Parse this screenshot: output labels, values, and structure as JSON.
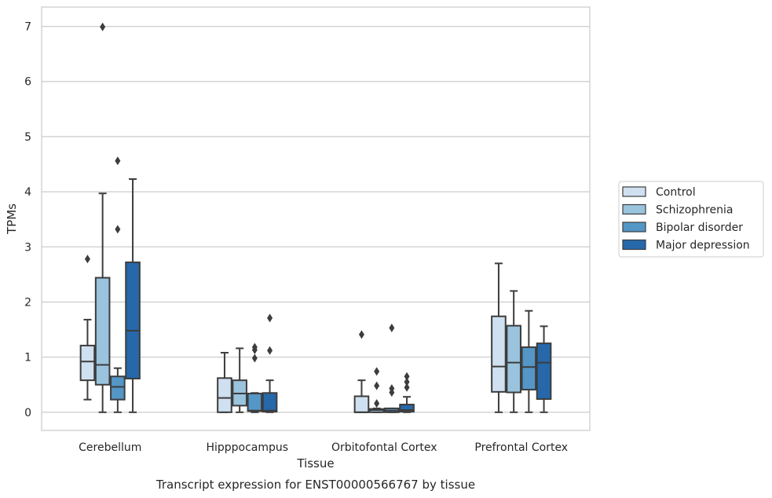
{
  "chart_data": {
    "type": "box",
    "title": "",
    "caption": "Transcript expression for ENST00000566767 by tissue",
    "xlabel": "Tissue",
    "ylabel": "TPMs",
    "ylim": [
      -0.33,
      7.35
    ],
    "yticks": [
      0,
      1,
      2,
      3,
      4,
      5,
      6,
      7
    ],
    "grid": "horizontal",
    "legend_position": "right",
    "categories": [
      "Cerebellum",
      "Hipppocampus",
      "Orbitofontal Cortex",
      "Prefrontal Cortex"
    ],
    "series": [
      {
        "name": "Control",
        "color": "#cfe0f0",
        "boxes": [
          {
            "whislo": 0.23,
            "q1": 0.58,
            "median": 0.92,
            "q3": 1.21,
            "whishi": 1.68,
            "fliers": [
              2.78
            ]
          },
          {
            "whislo": 0.0,
            "q1": 0.0,
            "median": 0.26,
            "q3": 0.62,
            "whishi": 1.08,
            "fliers": []
          },
          {
            "whislo": 0.0,
            "q1": 0.0,
            "median": 0.0,
            "q3": 0.29,
            "whishi": 0.58,
            "fliers": [
              1.41
            ]
          },
          {
            "whislo": 0.0,
            "q1": 0.37,
            "median": 0.83,
            "q3": 1.74,
            "whishi": 2.7,
            "fliers": []
          }
        ]
      },
      {
        "name": "Schizophrenia",
        "color": "#9ac3de",
        "boxes": [
          {
            "whislo": 0.0,
            "q1": 0.5,
            "median": 0.86,
            "q3": 2.44,
            "whishi": 3.97,
            "fliers": [
              6.99
            ]
          },
          {
            "whislo": 0.0,
            "q1": 0.12,
            "median": 0.34,
            "q3": 0.58,
            "whishi": 1.16,
            "fliers": []
          },
          {
            "whislo": 0.0,
            "q1": 0.0,
            "median": 0.04,
            "q3": 0.06,
            "whishi": 0.07,
            "fliers": [
              0.16,
              0.48,
              0.74
            ]
          },
          {
            "whislo": 0.0,
            "q1": 0.36,
            "median": 0.9,
            "q3": 1.57,
            "whishi": 2.2,
            "fliers": []
          }
        ]
      },
      {
        "name": "Bipolar disorder",
        "color": "#5496c6",
        "boxes": [
          {
            "whislo": 0.0,
            "q1": 0.23,
            "median": 0.46,
            "q3": 0.65,
            "whishi": 0.8,
            "fliers": [
              3.32,
              4.56
            ]
          },
          {
            "whislo": 0.0,
            "q1": 0.02,
            "median": 0.03,
            "q3": 0.34,
            "whishi": 0.35,
            "fliers": [
              0.98,
              1.13,
              1.18
            ]
          },
          {
            "whislo": 0.0,
            "q1": 0.0,
            "median": 0.03,
            "q3": 0.07,
            "whishi": 0.07,
            "fliers": [
              0.36,
              0.43,
              1.53
            ]
          },
          {
            "whislo": 0.0,
            "q1": 0.41,
            "median": 0.82,
            "q3": 1.18,
            "whishi": 1.84,
            "fliers": []
          }
        ]
      },
      {
        "name": "Major depression",
        "color": "#2668aa",
        "boxes": [
          {
            "whislo": 0.0,
            "q1": 0.61,
            "median": 1.48,
            "q3": 2.72,
            "whishi": 4.23,
            "fliers": []
          },
          {
            "whislo": 0.0,
            "q1": 0.01,
            "median": 0.03,
            "q3": 0.35,
            "whishi": 0.58,
            "fliers": [
              1.12,
              1.71
            ]
          },
          {
            "whislo": 0.0,
            "q1": 0.01,
            "median": 0.04,
            "q3": 0.14,
            "whishi": 0.28,
            "fliers": [
              0.45,
              0.55,
              0.65
            ]
          },
          {
            "whislo": 0.0,
            "q1": 0.24,
            "median": 0.9,
            "q3": 1.25,
            "whishi": 1.56,
            "fliers": []
          }
        ]
      }
    ]
  }
}
